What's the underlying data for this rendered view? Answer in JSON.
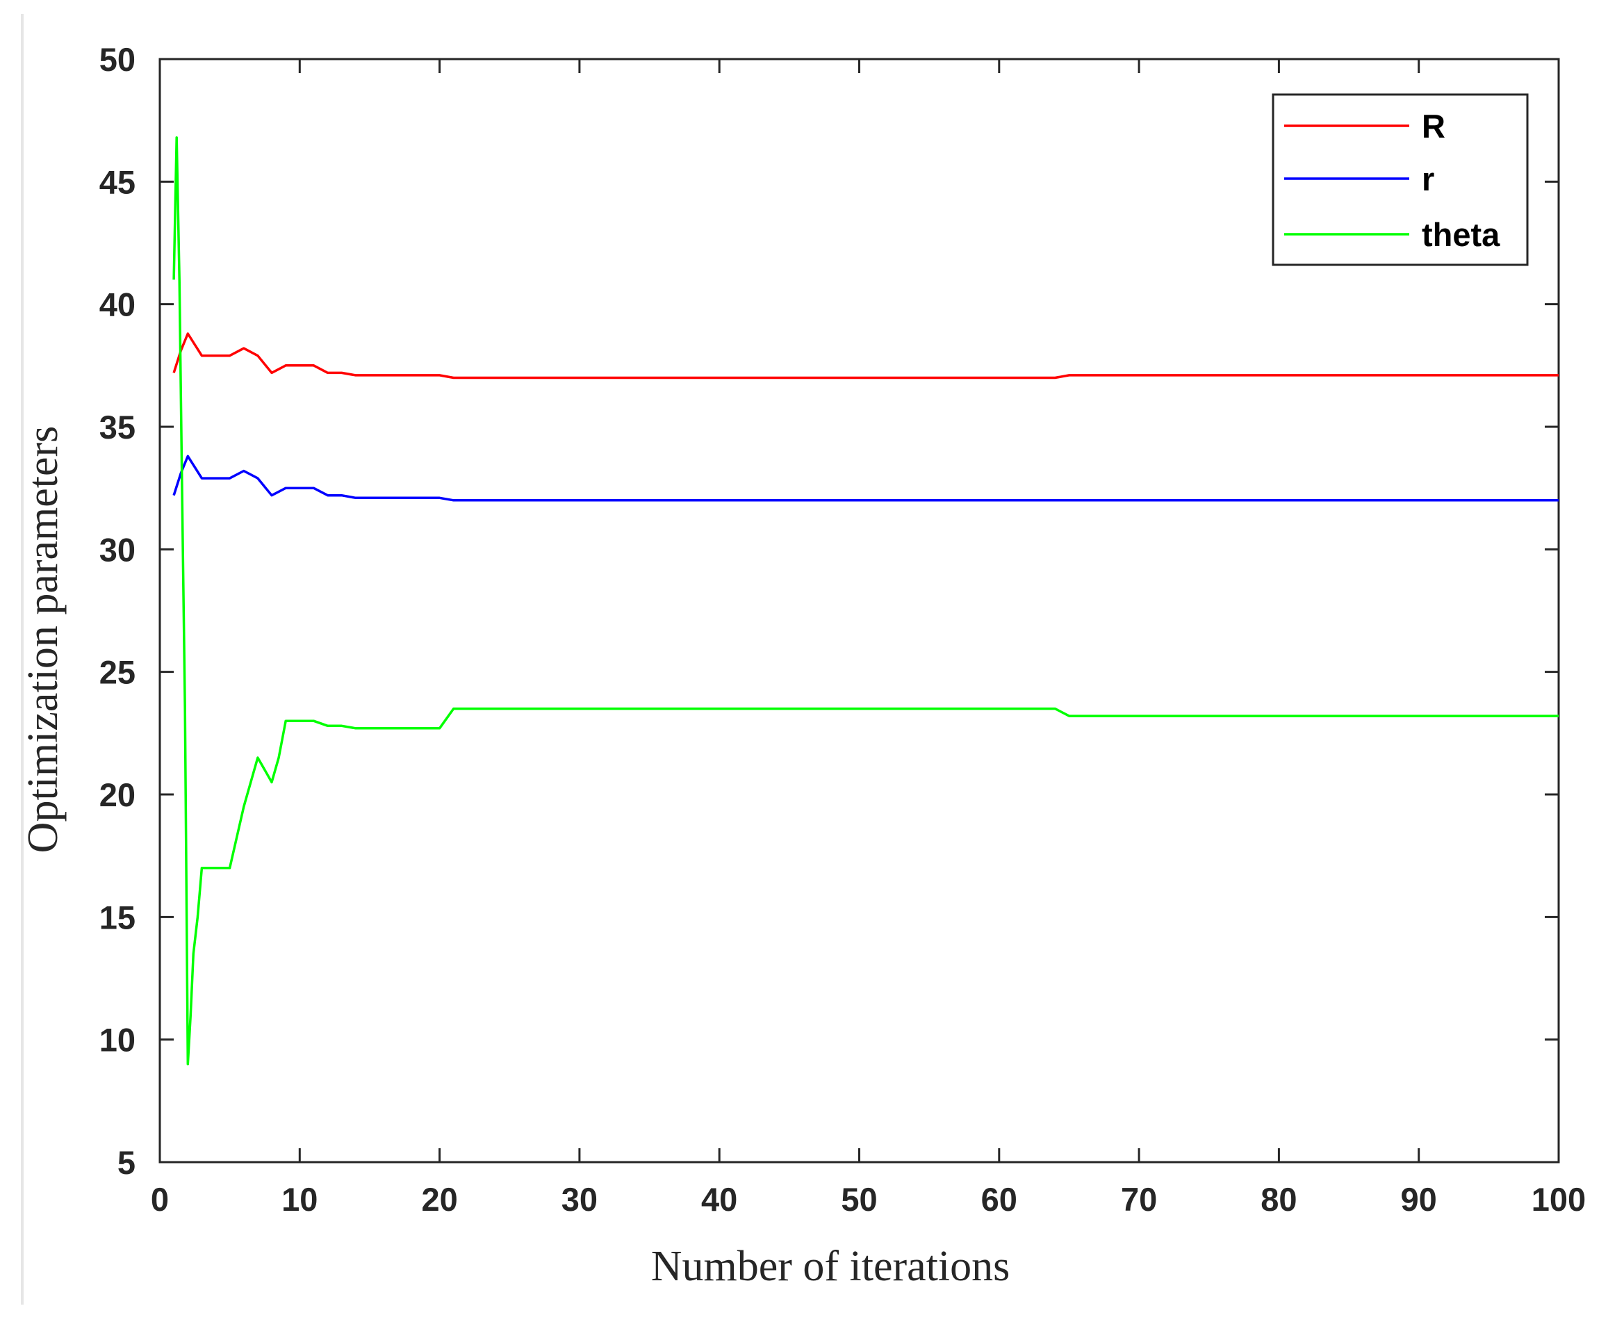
{
  "chart_data": {
    "type": "line",
    "title": "",
    "xlabel": "Number of iterations",
    "ylabel": "Optimization parameters",
    "xlim": [
      0,
      100
    ],
    "ylim": [
      5,
      50
    ],
    "xticks": [
      0,
      10,
      20,
      30,
      40,
      50,
      60,
      70,
      80,
      90,
      100
    ],
    "yticks": [
      5,
      10,
      15,
      20,
      25,
      30,
      35,
      40,
      45,
      50
    ],
    "xtick_labels": [
      "0",
      "10",
      "20",
      "30",
      "40",
      "50",
      "60",
      "70",
      "80",
      "90",
      "100"
    ],
    "ytick_labels": [
      "5",
      "10",
      "15",
      "20",
      "25",
      "30",
      "35",
      "40",
      "45",
      "50"
    ],
    "grid": false,
    "legend_position": "top-right",
    "series": [
      {
        "name": "R",
        "color": "#ff0000",
        "x": [
          1,
          1.5,
          2,
          3,
          4,
          5,
          6,
          7,
          8,
          9,
          10,
          11,
          12,
          13,
          14,
          15,
          20,
          21,
          30,
          40,
          50,
          60,
          64,
          65,
          70,
          80,
          90,
          100
        ],
        "y": [
          37.2,
          38.1,
          38.8,
          37.9,
          37.9,
          37.9,
          38.2,
          37.9,
          37.2,
          37.5,
          37.5,
          37.5,
          37.2,
          37.2,
          37.1,
          37.1,
          37.1,
          37.0,
          37.0,
          37.0,
          37.0,
          37.0,
          37.0,
          37.1,
          37.1,
          37.1,
          37.1,
          37.1
        ]
      },
      {
        "name": "r",
        "color": "#0000ff",
        "x": [
          1,
          1.5,
          2,
          3,
          4,
          5,
          6,
          7,
          8,
          9,
          10,
          11,
          12,
          13,
          14,
          15,
          20,
          21,
          30,
          40,
          50,
          60,
          64,
          65,
          70,
          80,
          90,
          100
        ],
        "y": [
          32.2,
          33.1,
          33.8,
          32.9,
          32.9,
          32.9,
          33.2,
          32.9,
          32.2,
          32.5,
          32.5,
          32.5,
          32.2,
          32.2,
          32.1,
          32.1,
          32.1,
          32.0,
          32.0,
          32.0,
          32.0,
          32.0,
          32.0,
          32.0,
          32.0,
          32.0,
          32.0,
          32.0
        ]
      },
      {
        "name": "theta",
        "color": "#00ff00",
        "x": [
          1,
          1.2,
          1.4,
          1.6,
          1.8,
          2,
          2.2,
          2.4,
          2.7,
          3,
          4,
          5,
          6,
          7,
          7.5,
          8,
          8.5,
          9,
          10,
          11,
          12,
          13,
          14,
          15,
          17,
          20,
          21,
          30,
          40,
          50,
          60,
          64,
          65,
          70,
          80,
          90,
          100
        ],
        "y": [
          41,
          46.8,
          41,
          32,
          23.5,
          9,
          11,
          13.5,
          15,
          17,
          17,
          17,
          19.5,
          21.5,
          21,
          20.5,
          21.5,
          23,
          23,
          23,
          22.8,
          22.8,
          22.7,
          22.7,
          22.7,
          22.7,
          23.5,
          23.5,
          23.5,
          23.5,
          23.5,
          23.5,
          23.2,
          23.2,
          23.2,
          23.2,
          23.2
        ]
      }
    ]
  }
}
